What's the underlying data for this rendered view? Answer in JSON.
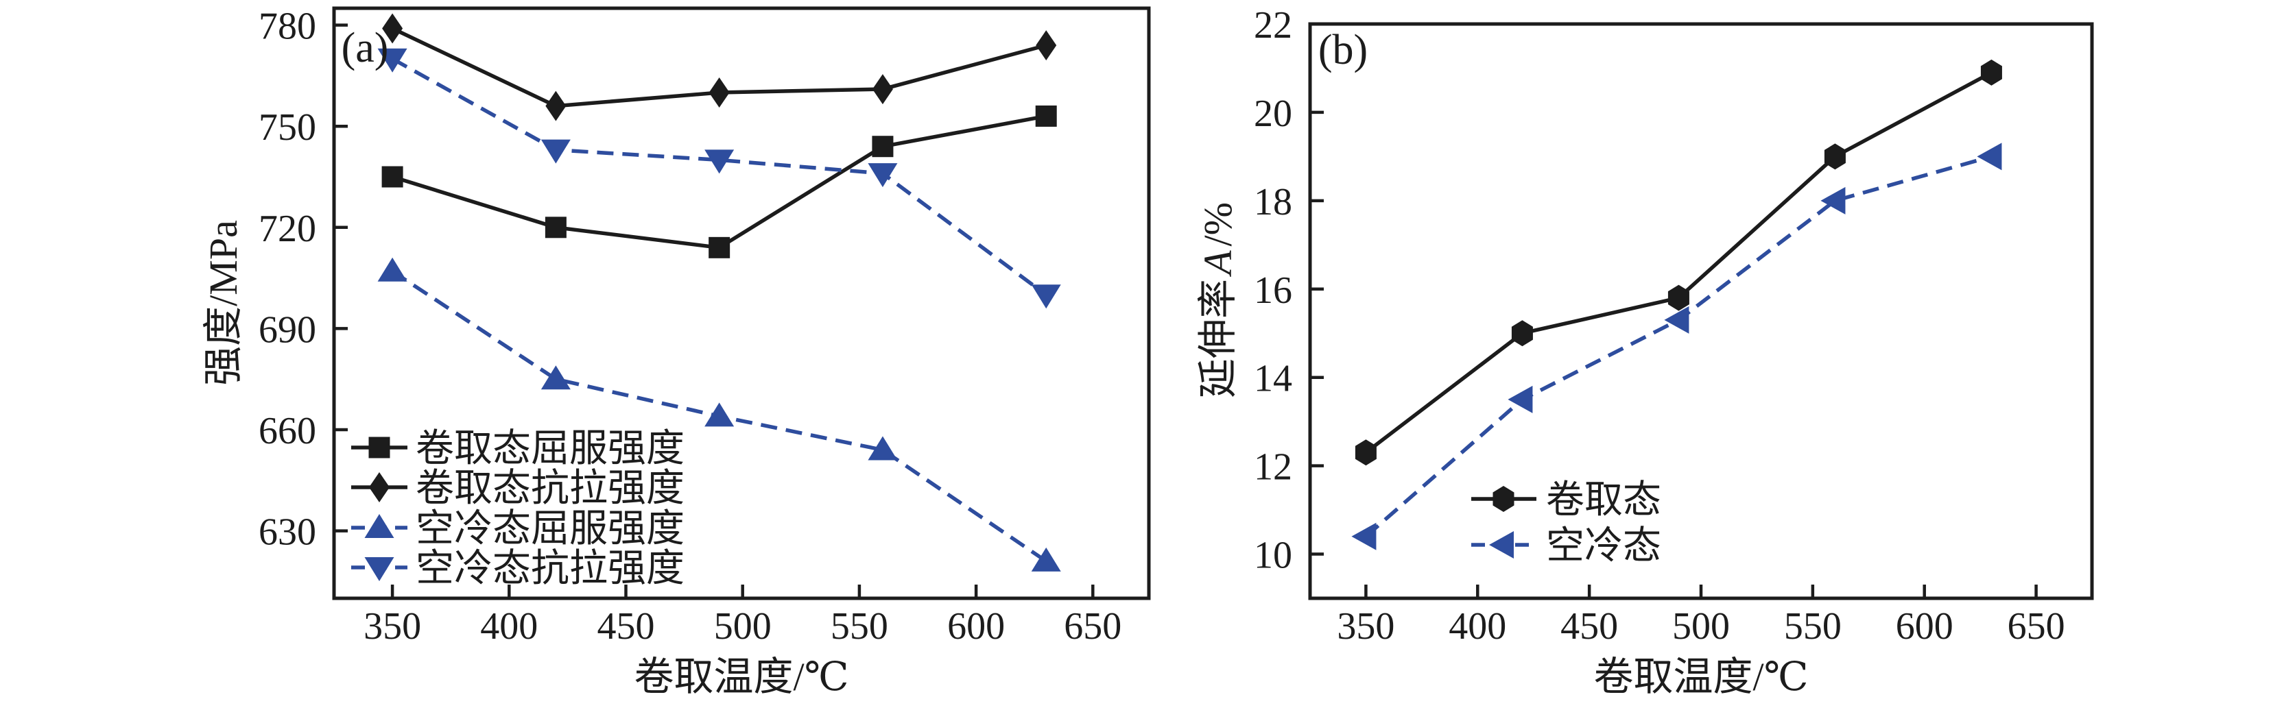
{
  "page": {
    "background": "#ffffff"
  },
  "colors": {
    "black": "#1c1c1c",
    "blue": "#2e4d9e"
  },
  "chart_data": [
    {
      "type": "line",
      "panel_label": "(a)",
      "xlabel": "卷取温度/℃",
      "ylabel": "强度/MPa",
      "x": [
        350,
        420,
        490,
        560,
        630
      ],
      "series": [
        {
          "name": "卷取态屈服强度",
          "marker": "square",
          "line": "solid",
          "color": "#1c1c1c",
          "values": [
            735,
            720,
            714,
            744,
            753
          ]
        },
        {
          "name": "卷取态抗拉强度",
          "marker": "diamond",
          "line": "solid",
          "color": "#1c1c1c",
          "values": [
            779,
            756,
            760,
            761,
            774
          ]
        },
        {
          "name": "空冷态屈服强度",
          "marker": "triangle-up",
          "line": "dashed",
          "color": "#2e4d9e",
          "values": [
            707,
            675,
            664,
            654,
            621
          ]
        },
        {
          "name": "空冷态抗拉强度",
          "marker": "triangle-down",
          "line": "dashed",
          "color": "#2e4d9e",
          "values": [
            770,
            743,
            740,
            736,
            700
          ]
        }
      ],
      "xlim": [
        325,
        674
      ],
      "ylim": [
        610,
        785
      ],
      "xticks": [
        350,
        400,
        450,
        500,
        550,
        600,
        650
      ],
      "yticks": [
        630,
        660,
        690,
        720,
        750,
        780
      ],
      "grid": false,
      "legend_position": "lower-left-inside"
    },
    {
      "type": "line",
      "panel_label": "(b)",
      "xlabel": "卷取温度/℃",
      "ylabel_parts": [
        {
          "text": "延伸率",
          "italic": false
        },
        {
          "text": "A",
          "italic": true
        },
        {
          "text": "/%",
          "italic": false
        }
      ],
      "x": [
        350,
        420,
        490,
        560,
        630
      ],
      "series": [
        {
          "name": "卷取态",
          "marker": "hexagon",
          "line": "solid",
          "color": "#1c1c1c",
          "values": [
            12.3,
            15.0,
            15.8,
            19.0,
            20.9
          ]
        },
        {
          "name": "空冷态",
          "marker": "triangle-left",
          "line": "dashed",
          "color": "#2e4d9e",
          "values": [
            10.4,
            13.5,
            15.3,
            18.0,
            19.0
          ]
        }
      ],
      "xlim": [
        325,
        675
      ],
      "ylim": [
        9,
        22
      ],
      "xticks": [
        350,
        400,
        450,
        500,
        550,
        600,
        650
      ],
      "yticks": [
        10,
        12,
        14,
        16,
        18,
        20,
        22
      ],
      "grid": false,
      "legend_position": "center-right-inside"
    }
  ]
}
